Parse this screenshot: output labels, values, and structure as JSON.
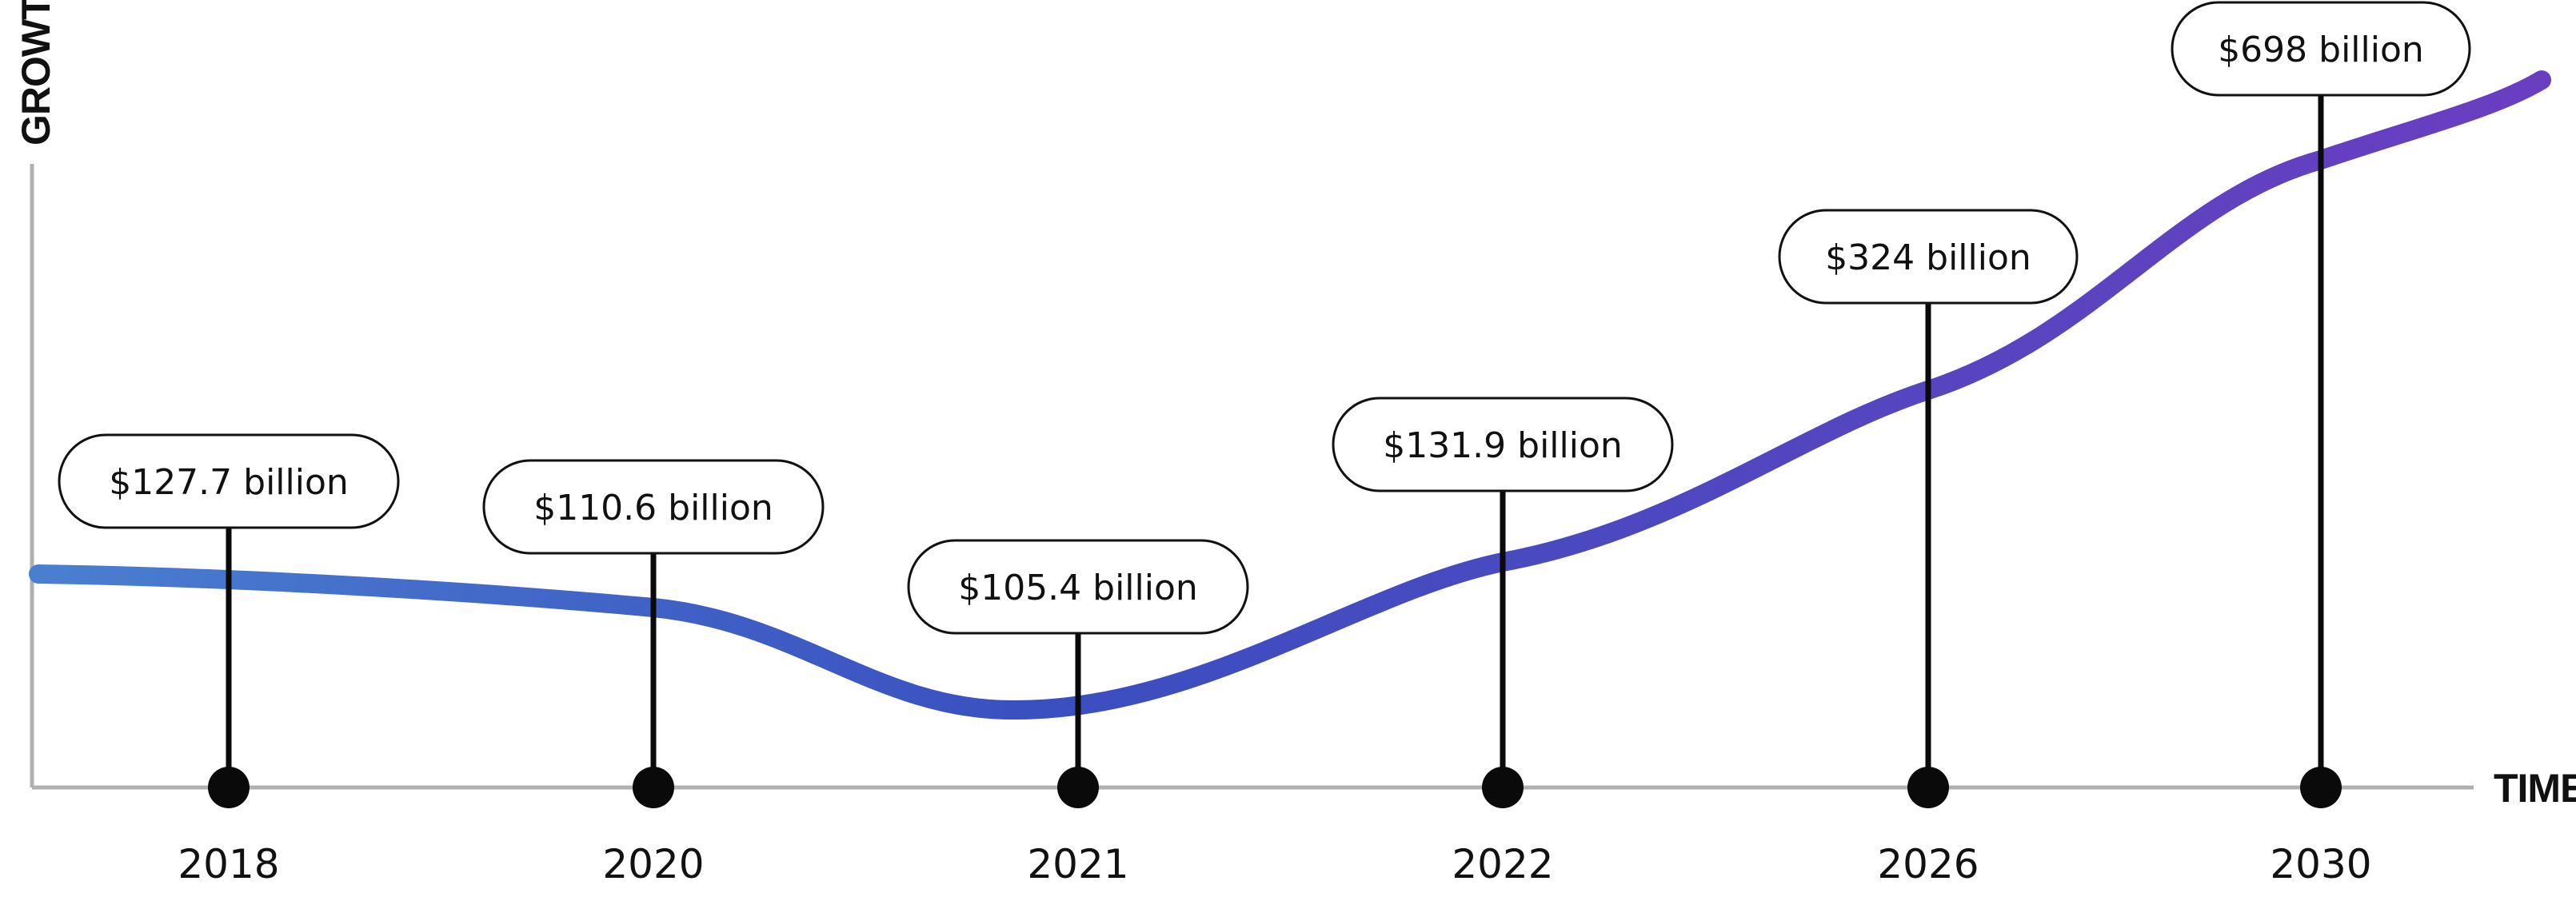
{
  "chart_data": {
    "type": "line",
    "title": "",
    "xlabel": "TIME",
    "ylabel": "GROWTH",
    "categories": [
      "2018",
      "2020",
      "2021",
      "2022",
      "2026",
      "2030"
    ],
    "series": [
      {
        "values": [
          127.7,
          110.6,
          105.4,
          131.9,
          324,
          698
        ],
        "labels": [
          "$127.7 billion",
          "$110.6 billion",
          "$105.4 billion",
          "$131.9 billion",
          "$324 billion",
          "$698 billion"
        ]
      }
    ],
    "grid": false,
    "legend": "none",
    "colors": {
      "line_start": "#4a7fd0",
      "line_mid": "#3a4fc0",
      "line_end": "#6a3ec0",
      "axis": "#b0b0b0",
      "marker": "#0a0a0a",
      "label_border": "#111111"
    }
  }
}
